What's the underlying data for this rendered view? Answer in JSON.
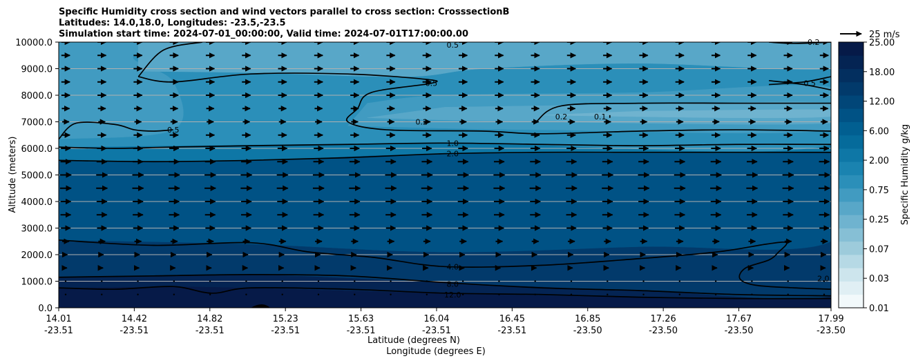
{
  "chart_data": {
    "type": "heatmap",
    "title_lines": [
      "Specific Humidity cross section and wind vectors parallel to cross section: CrosssectionB",
      "Latitudes: 14.0,18.0, Longitudes: -23.5,-23.5",
      "Simulation start time: 2024-07-01_00:00:00, Valid time: 2024-07-01T17:00:00.00"
    ],
    "ylabel": "Altitude (meters)",
    "xlabel_lat": "Latitude (degrees N)",
    "xlabel_lon": "Longitude (degrees E)",
    "ylim": [
      0,
      10000
    ],
    "y_ticks": [
      "0.0",
      "1000.0",
      "2000.0",
      "3000.0",
      "4000.0",
      "5000.0",
      "6000.0",
      "7000.0",
      "8000.0",
      "9000.0",
      "10000.0"
    ],
    "x_ticks_lat": [
      "14.01",
      "14.42",
      "14.82",
      "15.23",
      "15.63",
      "16.04",
      "16.45",
      "16.85",
      "17.26",
      "17.67",
      "17.99"
    ],
    "x_ticks_lon": [
      "-23.51",
      "-23.51",
      "-23.51",
      "-23.51",
      "-23.51",
      "-23.51",
      "-23.51",
      "-23.50",
      "-23.50",
      "-23.50",
      "-23.50"
    ],
    "grid": "horizontal",
    "colorbar": {
      "label": "Specific Humidity g/kg",
      "levels": [
        0.01,
        0.02,
        0.03,
        0.05,
        0.07,
        0.1,
        0.25,
        0.5,
        0.75,
        1.0,
        1.5,
        2.0,
        3.0,
        4.0,
        6.0,
        8.0,
        12.0,
        15.0,
        18.0,
        20.0,
        25.0
      ],
      "tick_labels": [
        "0.01",
        "0.03",
        "0.07",
        "0.25",
        "0.75",
        "2.00",
        "6.00",
        "12.00",
        "18.00",
        "25.00"
      ],
      "colors": [
        "#f2f9fb",
        "#e0eff4",
        "#cde5ed",
        "#b6d9e5",
        "#9dcbdb",
        "#86bfd5",
        "#6fb3cf",
        "#58a7c8",
        "#419bc1",
        "#2b8fb9",
        "#1a83b0",
        "#0e77a6",
        "#056b9b",
        "#015f91",
        "#005285",
        "#014678",
        "#023a6b",
        "#032f5f",
        "#042453",
        "#061a48"
      ]
    },
    "wind_key": "25 m/s",
    "contours": [
      {
        "level": "0.1",
        "points": [
          [
            16.85,
            7150
          ],
          [
            16.85,
            7250
          ]
        ]
      },
      {
        "level": "0.2",
        "points": [
          [
            16.47,
            7000
          ],
          [
            16.6,
            7600
          ],
          [
            17.0,
            7700
          ],
          [
            17.5,
            7700
          ],
          [
            17.99,
            7700
          ]
        ]
      },
      {
        "level": "0.2",
        "points": [
          [
            17.67,
            10000
          ],
          [
            17.8,
            9950
          ],
          [
            17.99,
            10000
          ]
        ]
      },
      {
        "level": "0.5",
        "points": [
          [
            14.01,
            6350
          ],
          [
            14.1,
            6950
          ],
          [
            14.3,
            6900
          ],
          [
            14.4,
            6700
          ],
          [
            14.5,
            6650
          ],
          [
            14.6,
            6700
          ]
        ]
      },
      {
        "level": "0.5",
        "points": [
          [
            14.42,
            8700
          ],
          [
            14.55,
            9700
          ],
          [
            14.75,
            10000
          ]
        ]
      },
      {
        "level": "0.5",
        "points": [
          [
            14.42,
            8700
          ],
          [
            14.6,
            8500
          ],
          [
            15.0,
            8800
          ],
          [
            15.5,
            8800
          ],
          [
            15.9,
            8600
          ],
          [
            15.93,
            8450
          ],
          [
            15.62,
            8100
          ],
          [
            15.55,
            7500
          ],
          [
            15.5,
            7000
          ],
          [
            15.7,
            6700
          ],
          [
            16.2,
            6650
          ],
          [
            16.5,
            6550
          ],
          [
            17.0,
            6650
          ],
          [
            17.5,
            6700
          ],
          [
            17.99,
            6650
          ]
        ]
      },
      {
        "level": "0.5",
        "points": [
          [
            17.67,
            8400
          ],
          [
            17.85,
            8500
          ],
          [
            17.99,
            8700
          ]
        ]
      },
      {
        "level": "0.5",
        "points": [
          [
            17.67,
            8550
          ],
          [
            17.85,
            8400
          ],
          [
            17.99,
            8200
          ]
        ]
      },
      {
        "level": "1.0",
        "points": [
          [
            14.01,
            6050
          ],
          [
            14.3,
            6000
          ],
          [
            14.6,
            6050
          ],
          [
            15.0,
            6100
          ],
          [
            15.5,
            6150
          ],
          [
            16.0,
            6200
          ],
          [
            16.5,
            6150
          ],
          [
            17.0,
            6100
          ],
          [
            17.5,
            6150
          ],
          [
            17.99,
            6150
          ]
        ]
      },
      {
        "level": "2.0",
        "points": [
          [
            14.01,
            5550
          ],
          [
            14.5,
            5500
          ],
          [
            15.0,
            5550
          ],
          [
            15.5,
            5650
          ],
          [
            16.0,
            5800
          ],
          [
            16.5,
            5850
          ],
          [
            17.0,
            5850
          ],
          [
            17.5,
            5850
          ],
          [
            17.99,
            5850
          ]
        ]
      },
      {
        "level": "4.0",
        "points": [
          [
            14.01,
            2550
          ],
          [
            14.5,
            2350
          ],
          [
            15.0,
            2450
          ],
          [
            15.3,
            2100
          ],
          [
            15.63,
            1900
          ],
          [
            16.0,
            1550
          ],
          [
            16.5,
            1600
          ],
          [
            17.0,
            1850
          ],
          [
            17.4,
            2100
          ],
          [
            17.66,
            2400
          ],
          [
            17.76,
            2450
          ],
          [
            17.72,
            2100
          ],
          [
            17.67,
            1800
          ],
          [
            17.55,
            1500
          ],
          [
            17.52,
            1100
          ],
          [
            17.6,
            850
          ],
          [
            17.8,
            750
          ],
          [
            17.99,
            700
          ]
        ]
      },
      {
        "level": "8.0",
        "points": [
          [
            14.01,
            1150
          ],
          [
            14.5,
            1200
          ],
          [
            15.0,
            1250
          ],
          [
            15.5,
            1200
          ],
          [
            16.0,
            950
          ],
          [
            16.5,
            750
          ],
          [
            17.0,
            650
          ],
          [
            17.5,
            500
          ],
          [
            17.99,
            450
          ]
        ]
      },
      {
        "level": "12.0",
        "points": [
          [
            14.01,
            750
          ],
          [
            14.3,
            700
          ],
          [
            14.6,
            800
          ],
          [
            14.8,
            550
          ],
          [
            15.0,
            750
          ],
          [
            15.5,
            700
          ],
          [
            16.0,
            550
          ],
          [
            16.5,
            500
          ],
          [
            17.0,
            400
          ],
          [
            17.5,
            350
          ],
          [
            17.99,
            350
          ]
        ]
      }
    ],
    "contour_labels": [
      {
        "text": "0.5",
        "x": 16.04,
        "y": 9900
      },
      {
        "text": "0.5",
        "x": 15.93,
        "y": 8450
      },
      {
        "text": "0.2",
        "x": 15.88,
        "y": 7000
      },
      {
        "text": "1.0",
        "x": 16.04,
        "y": 6200
      },
      {
        "text": "2.0",
        "x": 16.04,
        "y": 5800
      },
      {
        "text": "0.5",
        "x": 14.6,
        "y": 6700
      },
      {
        "text": "0.2",
        "x": 16.6,
        "y": 7200
      },
      {
        "text": "0.1",
        "x": 16.8,
        "y": 7200
      },
      {
        "text": "0.5",
        "x": 17.88,
        "y": 8450
      },
      {
        "text": "0.2",
        "x": 17.9,
        "y": 10000
      },
      {
        "text": "4.0",
        "x": 16.04,
        "y": 1550
      },
      {
        "text": "8.0",
        "x": 16.04,
        "y": 900
      },
      {
        "text": "12.0",
        "x": 16.04,
        "y": 500
      },
      {
        "text": "2.0",
        "x": 17.95,
        "y": 1100
      }
    ],
    "bands": [
      {
        "level_index": 19,
        "points": [
          [
            14.01,
            0
          ],
          [
            17.99,
            0
          ],
          [
            17.99,
            400
          ],
          [
            17.0,
            450
          ],
          [
            16.0,
            550
          ],
          [
            15.0,
            750
          ],
          [
            14.6,
            800
          ],
          [
            14.01,
            750
          ]
        ]
      },
      {
        "level_index": 18,
        "points": [
          [
            14.01,
            750
          ],
          [
            14.6,
            800
          ],
          [
            15.0,
            750
          ],
          [
            16.0,
            550
          ],
          [
            17.0,
            400
          ],
          [
            17.99,
            350
          ],
          [
            17.99,
            450
          ],
          [
            17.0,
            650
          ],
          [
            16.0,
            950
          ],
          [
            15.0,
            1250
          ],
          [
            14.01,
            1150
          ]
        ]
      },
      {
        "level_index": 16,
        "points": [
          [
            14.01,
            1150
          ],
          [
            15.0,
            1250
          ],
          [
            16.0,
            950
          ],
          [
            17.0,
            650
          ],
          [
            17.99,
            450
          ],
          [
            17.99,
            2500
          ],
          [
            17.0,
            2300
          ],
          [
            16.0,
            2100
          ],
          [
            15.0,
            2400
          ],
          [
            14.01,
            2550
          ]
        ]
      },
      {
        "level_index": 14,
        "points": [
          [
            14.01,
            2550
          ],
          [
            15.0,
            2400
          ],
          [
            16.0,
            2100
          ],
          [
            17.0,
            2300
          ],
          [
            17.99,
            2500
          ],
          [
            17.99,
            5850
          ],
          [
            16.0,
            5800
          ],
          [
            15.0,
            5550
          ],
          [
            14.01,
            5550
          ]
        ]
      },
      {
        "level_index": 11,
        "points": [
          [
            14.01,
            5550
          ],
          [
            15.0,
            5550
          ],
          [
            16.0,
            5800
          ],
          [
            17.99,
            5850
          ],
          [
            17.99,
            6150
          ],
          [
            16.0,
            6200
          ],
          [
            14.01,
            6050
          ]
        ]
      },
      {
        "level_index": 9,
        "points": [
          [
            14.01,
            6050
          ],
          [
            16.0,
            6200
          ],
          [
            17.99,
            6150
          ],
          [
            17.99,
            10000
          ],
          [
            14.01,
            10000
          ]
        ]
      },
      {
        "level_index": 8,
        "points": [
          [
            14.01,
            6350
          ],
          [
            14.6,
            6700
          ],
          [
            14.6,
            8500
          ],
          [
            14.4,
            9500
          ],
          [
            14.9,
            10000
          ],
          [
            14.01,
            10000
          ]
        ]
      },
      {
        "level_index": 8,
        "points": [
          [
            15.5,
            6850
          ],
          [
            16.5,
            6700
          ],
          [
            17.99,
            6700
          ],
          [
            17.99,
            8300
          ],
          [
            17.0,
            8100
          ],
          [
            16.0,
            8000
          ],
          [
            15.6,
            7700
          ]
        ]
      },
      {
        "level_index": 7,
        "points": [
          [
            15.6,
            7150
          ],
          [
            16.5,
            7000
          ],
          [
            17.99,
            6950
          ],
          [
            17.99,
            7700
          ],
          [
            17.0,
            7650
          ],
          [
            16.0,
            7550
          ]
        ]
      },
      {
        "level_index": 6,
        "points": [
          [
            16.5,
            7250
          ],
          [
            17.5,
            7150
          ],
          [
            17.99,
            7200
          ],
          [
            17.99,
            7450
          ],
          [
            17.0,
            7400
          ]
        ]
      },
      {
        "level_index": 7,
        "points": [
          [
            14.42,
            8900
          ],
          [
            15.0,
            8850
          ],
          [
            15.8,
            8700
          ],
          [
            16.2,
            9000
          ],
          [
            17.0,
            9200
          ],
          [
            17.99,
            9000
          ],
          [
            17.99,
            10000
          ],
          [
            14.42,
            10000
          ]
        ]
      }
    ],
    "wind": {
      "rows_m": [
        500,
        1000,
        1500,
        2000,
        2500,
        3000,
        3500,
        4000,
        4500,
        5000,
        5500,
        6000,
        6500,
        7000,
        7500,
        8000,
        8500,
        9000,
        9500,
        10000
      ],
      "speeds_ms": [
        1,
        2,
        3,
        4,
        8,
        11,
        12,
        12,
        13,
        13,
        12,
        11,
        10,
        8,
        9,
        10,
        10,
        10,
        10,
        10
      ],
      "columns": 22
    }
  }
}
